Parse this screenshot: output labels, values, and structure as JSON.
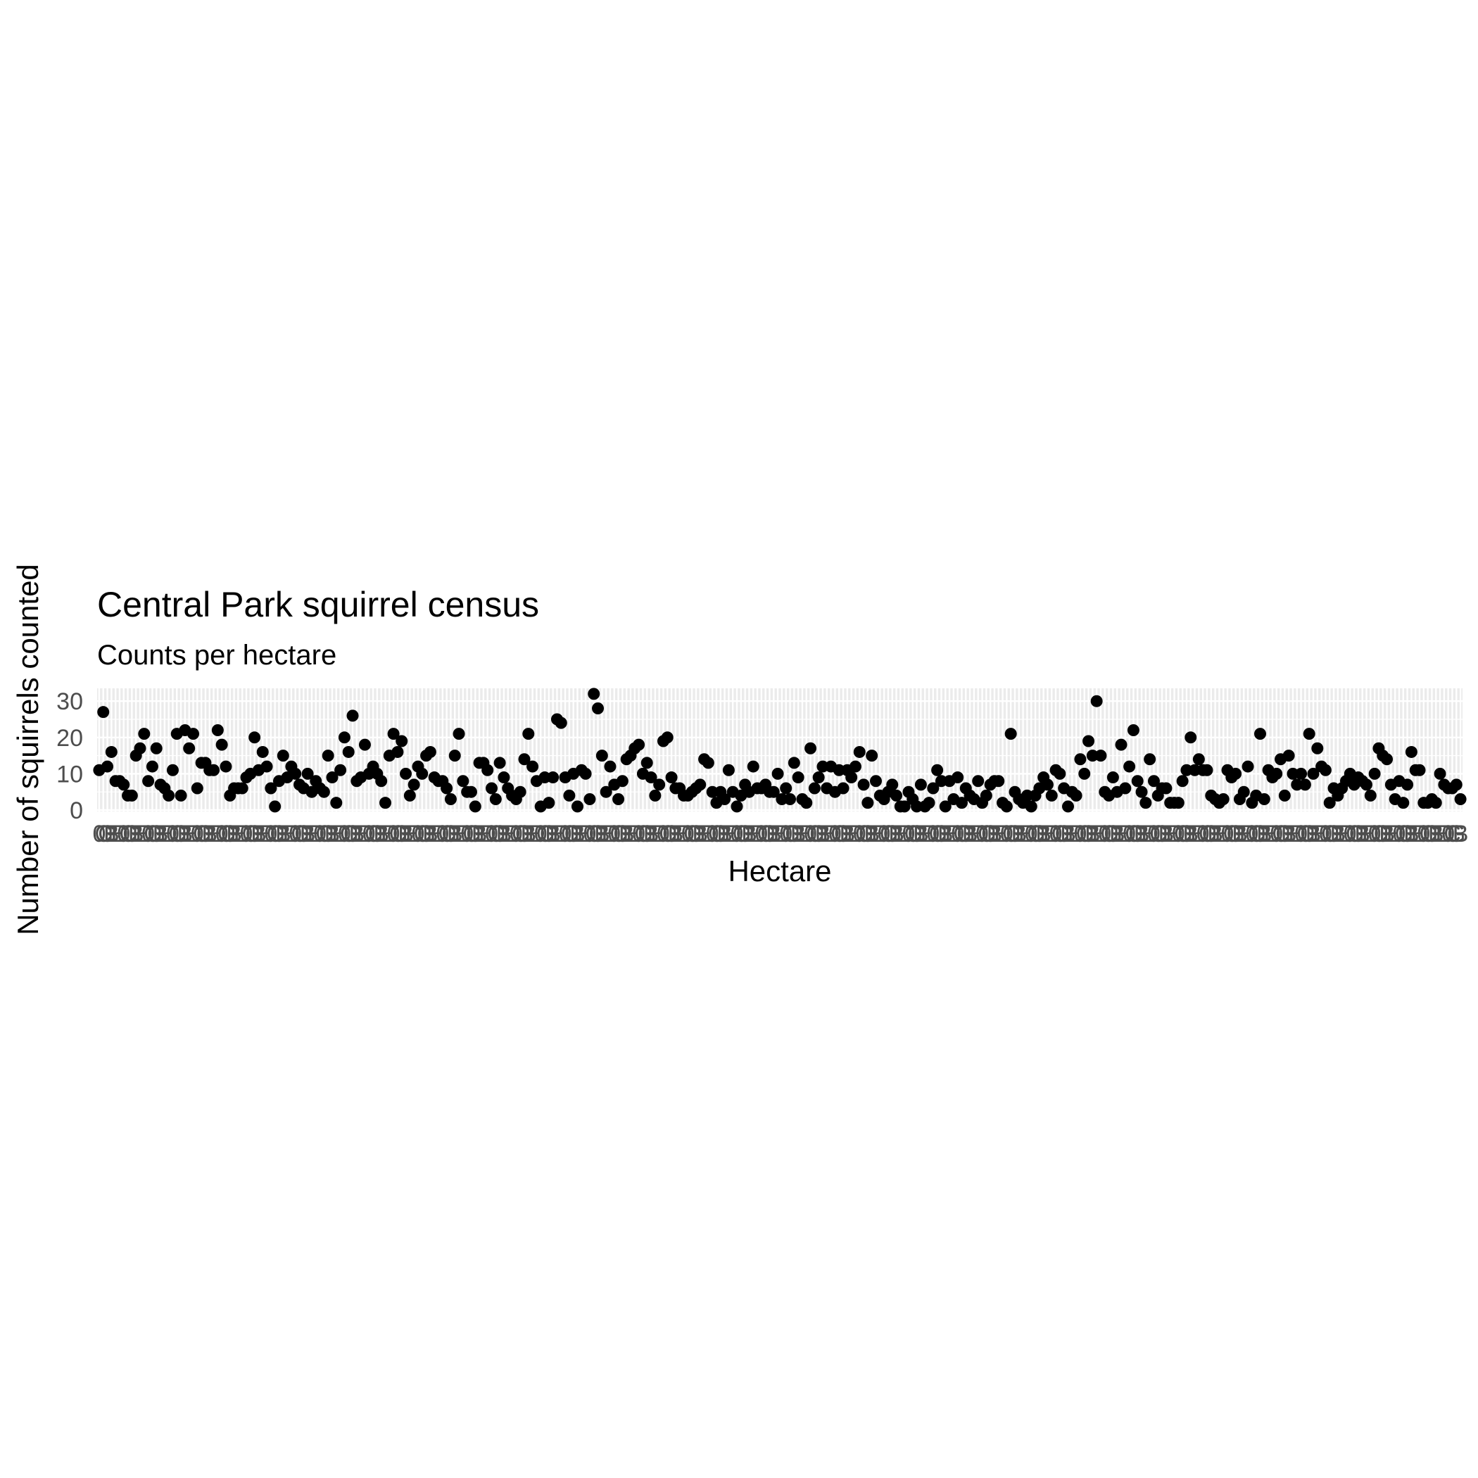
{
  "colors": {
    "panel_background": "#ebebeb",
    "grid": "#ffffff",
    "point": "#000000",
    "tick_text": "#4d4d4d",
    "text": "#000000"
  },
  "chart_data": {
    "type": "scatter",
    "title": "Central Park squirrel census",
    "subtitle": "Counts per hectare",
    "xlabel": "Hectare",
    "ylabel": "Number of squirrels counted",
    "ylim": [
      0,
      33
    ],
    "yticks": [
      0,
      10,
      20,
      30
    ],
    "x_axis": "categorical",
    "x_tick_labels_legible": false,
    "grid": true,
    "legend": "none",
    "values": [
      11,
      27,
      12,
      16,
      8,
      8,
      7,
      4,
      4,
      15,
      17,
      21,
      8,
      12,
      17,
      7,
      6,
      4,
      11,
      21,
      4,
      22,
      17,
      21,
      6,
      13,
      13,
      11,
      11,
      22,
      18,
      12,
      4,
      6,
      6,
      6,
      9,
      10,
      20,
      11,
      16,
      12,
      6,
      1,
      8,
      15,
      9,
      12,
      10,
      7,
      6,
      10,
      5,
      8,
      6,
      5,
      15,
      9,
      2,
      11,
      20,
      16,
      26,
      8,
      9,
      18,
      10,
      12,
      10,
      8,
      2,
      15,
      21,
      16,
      19,
      10,
      4,
      7,
      12,
      10,
      15,
      16,
      9,
      8,
      8,
      6,
      3,
      15,
      21,
      8,
      5,
      5,
      1,
      13,
      13,
      11,
      6,
      3,
      13,
      9,
      6,
      4,
      3,
      5,
      14,
      21,
      12,
      8,
      1,
      9,
      2,
      9,
      25,
      24,
      9,
      4,
      10,
      1,
      11,
      10,
      3,
      32,
      28,
      15,
      5,
      12,
      7,
      3,
      8,
      14,
      15,
      17,
      18,
      10,
      13,
      9,
      4,
      7,
      19,
      20,
      9,
      6,
      6,
      4,
      4,
      5,
      6,
      7,
      14,
      13,
      5,
      2,
      5,
      3,
      11,
      5,
      1,
      4,
      7,
      5,
      12,
      6,
      6,
      7,
      5,
      5,
      10,
      3,
      6,
      3,
      13,
      9,
      3,
      2,
      17,
      6,
      9,
      12,
      6,
      12,
      5,
      11,
      6,
      11,
      9,
      12,
      16,
      7,
      2,
      15,
      8,
      4,
      3,
      5,
      7,
      4,
      1,
      1,
      5,
      3,
      1,
      7,
      1,
      2,
      6,
      11,
      8,
      1,
      8,
      3,
      9,
      2,
      6,
      4,
      3,
      8,
      2,
      4,
      7,
      8,
      8,
      2,
      1,
      21,
      5,
      3,
      2,
      4,
      1,
      4,
      6,
      9,
      7,
      4,
      11,
      10,
      6,
      1,
      5,
      4,
      14,
      10,
      19,
      15,
      30,
      15,
      5,
      4,
      9,
      5,
      18,
      6,
      12,
      22,
      8,
      5,
      2,
      14,
      8,
      4,
      6,
      6,
      2,
      2,
      2,
      8,
      11,
      20,
      11,
      14,
      11,
      11,
      4,
      3,
      2,
      3,
      11,
      9,
      10,
      3,
      5,
      12,
      2,
      4,
      21,
      3,
      11,
      9,
      10,
      14,
      4,
      15,
      10,
      7,
      10,
      7,
      21,
      10,
      17,
      12,
      11,
      2,
      6,
      4,
      6,
      8,
      10,
      7,
      9,
      8,
      7,
      4,
      10,
      17,
      15,
      14,
      7,
      3,
      8,
      2,
      7,
      16,
      11,
      11,
      2,
      2,
      3,
      2,
      10,
      7,
      6,
      6,
      7,
      3
    ]
  }
}
